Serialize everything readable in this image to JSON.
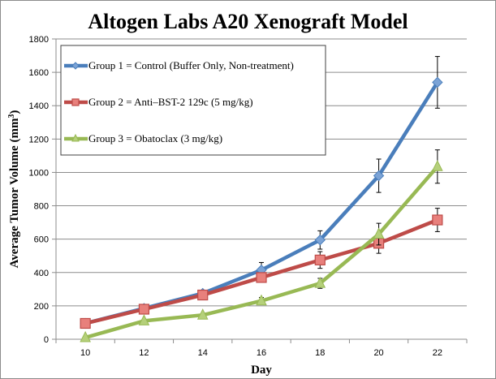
{
  "chart_data": {
    "type": "line",
    "title": "Altogen Labs A20 Xenograft Model",
    "xlabel": "Day",
    "ylabel": "Average Tumor Volume (mm³)",
    "ylabel_main": "Average Tumor Volume (mm",
    "ylabel_sup": "3",
    "ylabel_end": ")",
    "x": [
      10,
      12,
      14,
      16,
      18,
      20,
      22
    ],
    "x_tick_labels": [
      "10",
      "12",
      "14",
      "16",
      "18",
      "20",
      "22"
    ],
    "ylim": [
      0,
      1800
    ],
    "y_ticks": [
      0,
      200,
      400,
      600,
      800,
      1000,
      1200,
      1400,
      1600,
      1800
    ],
    "y_tick_labels": [
      "0",
      "200",
      "400",
      "600",
      "800",
      "1000",
      "1200",
      "1400",
      "1600",
      "1800"
    ],
    "grid": true,
    "legend_position": "top-left",
    "series": [
      {
        "name": "Group 1 = Control (Buffer Only, Non-treatment)",
        "color": "#4a7ebb",
        "marker": "diamond",
        "values": [
          95,
          185,
          275,
          415,
          595,
          980,
          1540
        ],
        "errors": [
          0,
          0,
          10,
          45,
          55,
          100,
          155
        ]
      },
      {
        "name": "Group 2 = Anti–BST-2 129c (5 mg/kg)",
        "color": "#be4b48",
        "marker": "square",
        "values": [
          95,
          180,
          265,
          370,
          475,
          575,
          715
        ],
        "errors": [
          0,
          0,
          10,
          25,
          50,
          60,
          70
        ]
      },
      {
        "name": "Group 3 = Obatoclax (3 mg/kg)",
        "color": "#98b954",
        "marker": "triangle",
        "values": [
          10,
          110,
          145,
          230,
          335,
          630,
          1035
        ],
        "errors": [
          0,
          0,
          0,
          20,
          30,
          65,
          100
        ]
      }
    ]
  }
}
